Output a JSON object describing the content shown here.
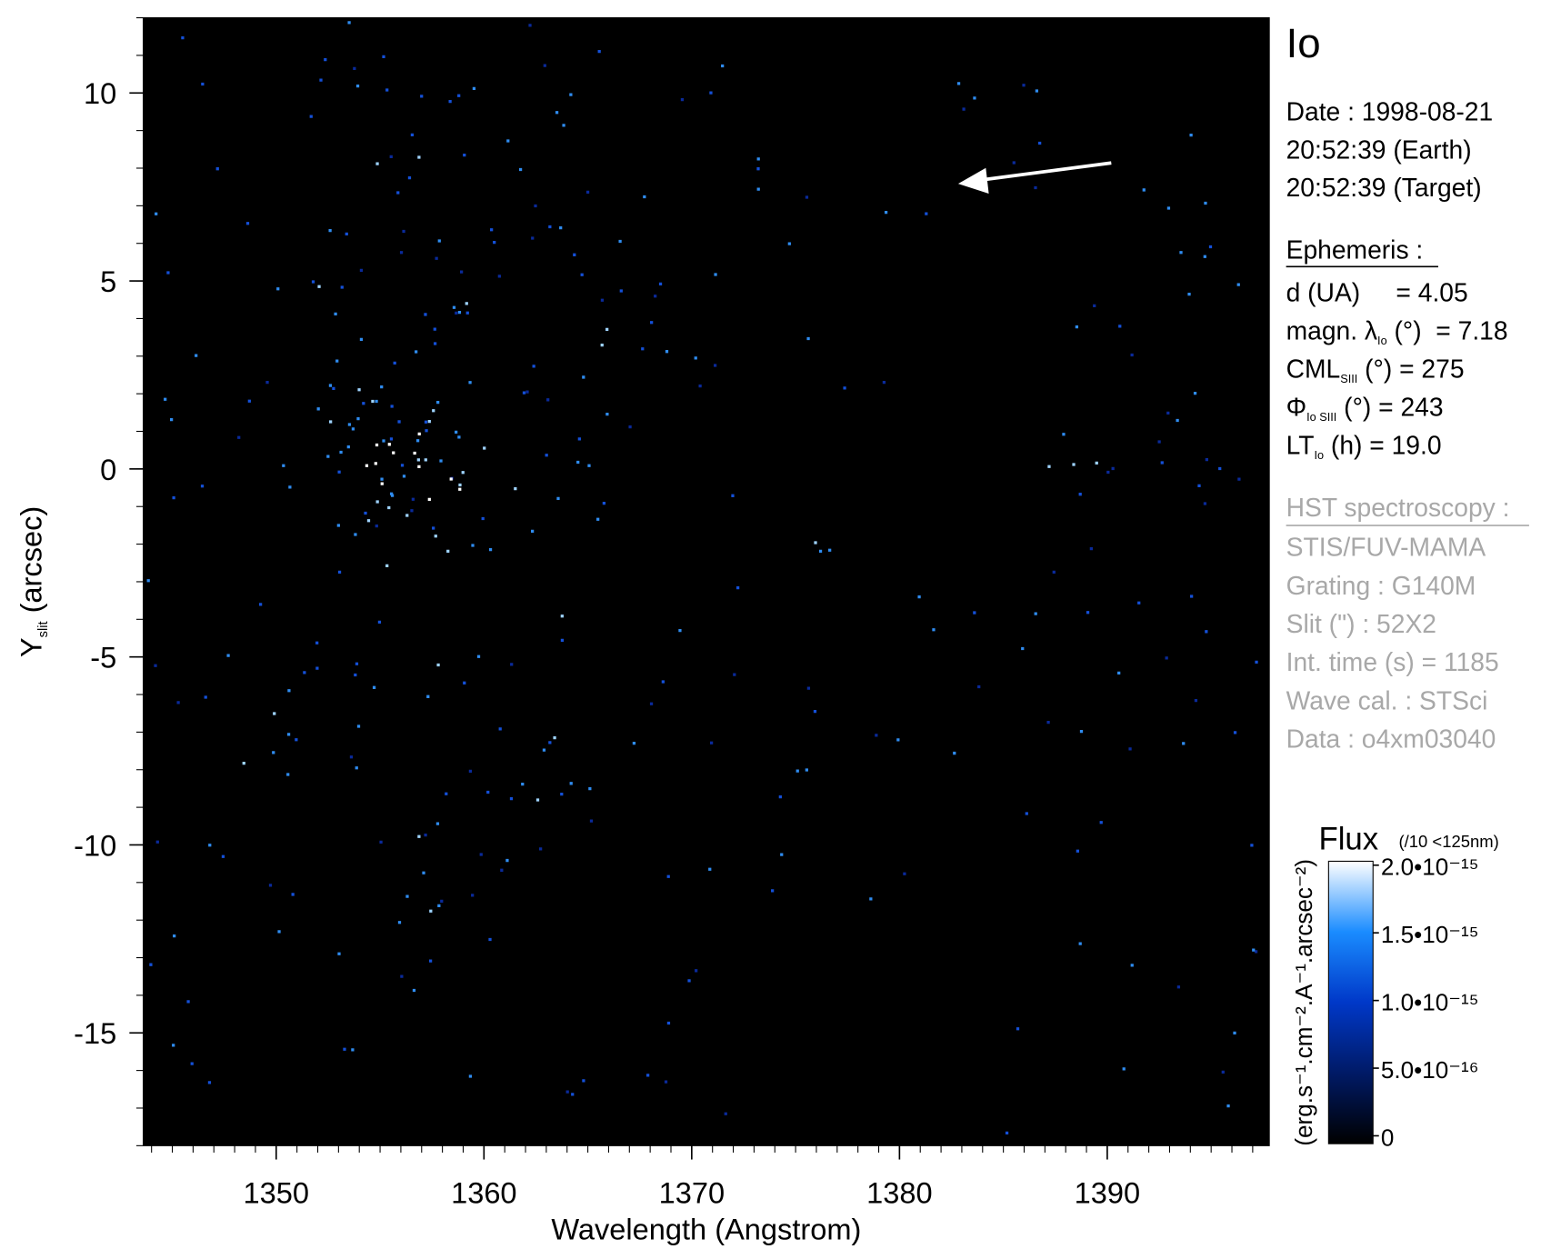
{
  "chart_data": {
    "type": "image",
    "x_label": "Wavelength (Angstrom)",
    "y_label": [
      {
        "text": "Y"
      },
      {
        "sub": "slit"
      },
      {
        "text": " (arcsec)"
      }
    ],
    "xlim": [
      1343.6,
      1397.8
    ],
    "ylim": [
      -18,
      12
    ],
    "xticks": [
      1350,
      1360,
      1370,
      1380,
      1390
    ],
    "yticks": [
      -15,
      -10,
      -5,
      0,
      5,
      10
    ],
    "x_minor_step": 1,
    "y_minor_step": 1,
    "colorbar": {
      "title": "Flux",
      "note": "(/10 <125nm)",
      "label": "(erg.s⁻¹.cm⁻².A⁻¹.arcsec⁻²)",
      "clim": [
        0,
        2e-15
      ],
      "ticks": [
        {
          "value": 0,
          "label": "0"
        },
        {
          "value": 5e-16,
          "label": "5.0•10⁻¹⁶"
        },
        {
          "value": 1e-15,
          "label": "1.0•10⁻¹⁵"
        },
        {
          "value": 1.5e-15,
          "label": "1.5•10⁻¹⁵"
        },
        {
          "value": 2e-15,
          "label": "2.0•10⁻¹⁵"
        }
      ]
    }
  },
  "panel": {
    "title": "Io",
    "date": [
      "Date : 1998-08-21",
      "20:52:39 (Earth)",
      "20:52:39 (Target)"
    ],
    "ephemeris": {
      "heading": "Ephemeris :",
      "lines": [
        [
          {
            "text": "d (UA)     = 4.05"
          }
        ],
        [
          {
            "text": "magn. λ"
          },
          {
            "sub": "Io"
          },
          {
            "text": " (°)  = 7.18"
          }
        ],
        [
          {
            "text": "CML"
          },
          {
            "sub": "SIII"
          },
          {
            "text": " (°) = 275"
          }
        ],
        [
          {
            "text": "Φ"
          },
          {
            "sub": "Io SIII"
          },
          {
            "text": " (°) = 243"
          }
        ],
        [
          {
            "text": "LT"
          },
          {
            "sub": "Io"
          },
          {
            "text": " (h) = 19.0"
          }
        ]
      ]
    },
    "hst": {
      "heading": "HST spectroscopy :",
      "lines": [
        "STIS/FUV-MAMA",
        "Grating : G140M",
        "Slit (\") : 52X2",
        "Int. time (s) = 1185",
        "Wave cal. : STSci",
        "Data : o4xm03040"
      ]
    }
  }
}
